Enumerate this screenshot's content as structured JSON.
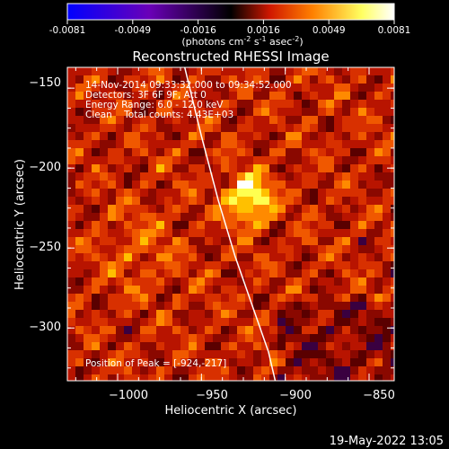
{
  "chart_data": {
    "type": "heatmap",
    "title": "Reconstructed RHESSI Image",
    "colorbar": {
      "ticks": [
        "-0.0081",
        "-0.0049",
        "-0.0016",
        "0.0016",
        "0.0049",
        "0.0081"
      ],
      "label_pre": "(photons cm",
      "label_exp1": "-2",
      "label_mid": " s",
      "label_exp2": "-1",
      "label_mid2": " asec",
      "label_exp3": "-2",
      "label_post": ")",
      "vmin": -0.0081,
      "vmax": 0.0081,
      "colors": [
        "#0000ff",
        "#6a00b8",
        "#000000",
        "#d01800",
        "#ff8000",
        "#ffff60",
        "#ffffff"
      ]
    },
    "xlabel": "Heliocentric X (arcsec)",
    "ylabel": "Heliocentric Y (arcsec)",
    "xlim": [
      -1030,
      -835
    ],
    "ylim": [
      -333,
      -137
    ],
    "xticks": [
      "−1000",
      "−950",
      "−900",
      "−850"
    ],
    "yticks": [
      "−150",
      "−200",
      "−250",
      "−300"
    ],
    "info_lines": [
      "14-Nov-2014 09:33:32.000 to 09:34:52.000",
      "Detectors: 3F 6F 9F, Att 0",
      "Energy Range: 6.0 - 12.0 keV",
      "Clean    Total counts: 4.43E+03"
    ],
    "peak_label": "Position of Peak = [-924,-217]",
    "peak": [
      -924,
      -217
    ],
    "limb": [
      [
        -960,
        -137
      ],
      [
        -950,
        -180
      ],
      [
        -940,
        -220
      ],
      [
        -930,
        -255
      ],
      [
        -920,
        -285
      ],
      [
        -910,
        -315
      ],
      [
        -906,
        -333
      ]
    ],
    "footer": "19-May-2022 13:05"
  }
}
